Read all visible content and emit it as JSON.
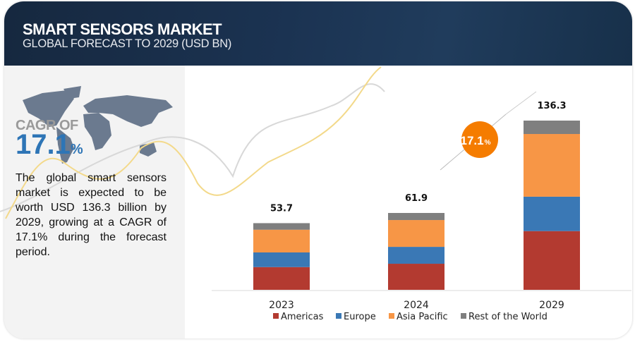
{
  "header": {
    "title": "SMART SENSORS MARKET",
    "subtitle": "GLOBAL FORECAST TO 2029 (USD BN)"
  },
  "sidebar": {
    "cagr_label": "CAGR OF",
    "cagr_value": "17.1",
    "cagr_unit": "%",
    "description": "The global smart sensors market is expected to be worth USD 136.3 billion by 2029, growing at a CAGR of 17.1% during the forecast period."
  },
  "badge": {
    "value": "17.1",
    "unit": "%",
    "color": "#f57c00"
  },
  "chart_data": {
    "type": "bar",
    "stacked": true,
    "categories": [
      "2023",
      "2024",
      "2029"
    ],
    "totals": [
      "53.7",
      "61.9",
      "136.3"
    ],
    "series": [
      {
        "name": "Americas",
        "color": "#b33a30",
        "values": [
          18.3,
          21.0,
          47.3
        ]
      },
      {
        "name": "Europe",
        "color": "#3a78b5",
        "values": [
          11.8,
          13.6,
          27.7
        ]
      },
      {
        "name": "Asia Pacific",
        "color": "#f79646",
        "values": [
          18.3,
          21.6,
          50.5
        ]
      },
      {
        "name": "Rest of the World",
        "color": "#7f7f7f",
        "values": [
          5.3,
          5.7,
          10.8
        ]
      }
    ],
    "ylim": [
      0,
      136.3
    ],
    "grid": false,
    "legend": "bottom"
  }
}
